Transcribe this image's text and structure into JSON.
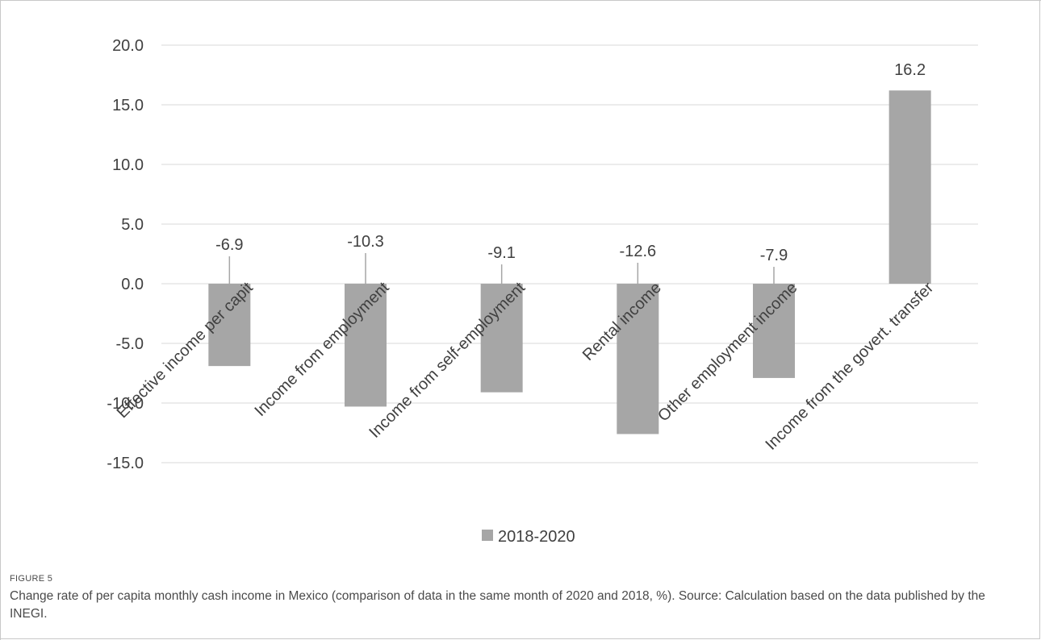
{
  "chart_data": {
    "type": "bar",
    "categories": [
      "Effective income per capit",
      "Income from employment",
      "Income from  self-employment",
      "Rental income",
      "Other employment income",
      "Income from the govert. transfer"
    ],
    "series": [
      {
        "name": "2018-2020",
        "values": [
          -6.9,
          -10.3,
          -9.1,
          -12.6,
          -7.9,
          16.2
        ]
      }
    ],
    "data_labels": [
      "-6.9",
      "-10.3",
      "-9.1",
      "-12.6",
      "-7.9",
      "16.2"
    ],
    "y_ticks": [
      "20.0",
      "15.0",
      "10.0",
      "5.0",
      "0.0",
      "-5.0",
      "-10.0",
      "-15.0"
    ],
    "ylim": [
      -15,
      20
    ],
    "grid": true,
    "legend_position": "bottom",
    "colors": {
      "bar": "#a6a6a6",
      "grid": "#d9d9d9",
      "text": "#404040",
      "leader": "#a6a6a6"
    }
  },
  "figure": {
    "label": "FIGURE 5",
    "caption": "Change rate of per capita monthly cash income in Mexico (comparison of data in the same month of 2020 and 2018, %). Source: Calculation based on the data published by the INEGI."
  }
}
